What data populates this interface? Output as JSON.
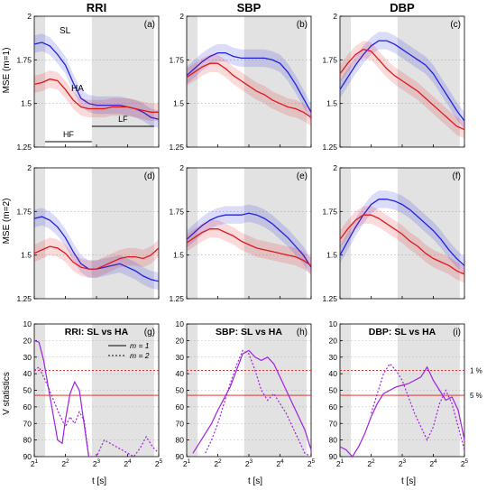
{
  "figure": {
    "ylabels": [
      "MSE (m=1)",
      "MSE (m=2)",
      "V statistics"
    ],
    "xlabel": "t [s]",
    "band_labels": {
      "hf": "HF",
      "lf": "LF"
    },
    "legend_top": {
      "sl": "SL",
      "ha": "HA"
    },
    "legend_bottom": {
      "m1": "m = 1",
      "m2": "m = 2"
    },
    "sig_labels": {
      "one": "1 %",
      "five": "5 %"
    }
  },
  "colors": {
    "sl": "#2020e0",
    "ha": "#e01818",
    "v": "#a020e0",
    "sig": "#e01818",
    "shade": "#e2e2e2"
  },
  "chart_data": [
    {
      "type": "line",
      "panel": "(a)",
      "title": "RRI",
      "xlabel": "",
      "ylabel": "MSE (m=1)",
      "xlim": [
        1,
        5
      ],
      "xscale": "log2",
      "ylim": [
        1.25,
        2
      ],
      "grid": true,
      "xticks": [
        "2^1",
        "2^2",
        "2^3",
        "2^4",
        "2^5"
      ],
      "yticks": [
        "1.25",
        "1.5",
        "1.75",
        "2"
      ],
      "annotations": [
        "SL",
        "HA",
        "HF",
        "LF"
      ],
      "series": [
        {
          "name": "SL",
          "x": [
            1,
            1.25,
            1.5,
            1.75,
            2,
            2.25,
            2.5,
            2.75,
            3,
            3.25,
            3.5,
            3.75,
            4,
            4.25,
            4.5,
            4.75,
            5
          ],
          "y": [
            1.84,
            1.85,
            1.83,
            1.78,
            1.72,
            1.62,
            1.53,
            1.5,
            1.49,
            1.49,
            1.49,
            1.49,
            1.48,
            1.47,
            1.45,
            1.42,
            1.41
          ]
        },
        {
          "name": "HA",
          "x": [
            1,
            1.25,
            1.5,
            1.75,
            2,
            2.25,
            2.5,
            2.75,
            3,
            3.25,
            3.5,
            3.75,
            4,
            4.25,
            4.5,
            4.75,
            5
          ],
          "y": [
            1.61,
            1.62,
            1.64,
            1.63,
            1.58,
            1.52,
            1.48,
            1.47,
            1.47,
            1.47,
            1.48,
            1.48,
            1.48,
            1.47,
            1.46,
            1.45,
            1.45
          ]
        }
      ]
    },
    {
      "type": "line",
      "panel": "(b)",
      "title": "SBP",
      "xlim": [
        1,
        5
      ],
      "xscale": "log2",
      "ylim": [
        1.25,
        2
      ],
      "grid": true,
      "xticks": [
        "2^1",
        "2^2",
        "2^3",
        "2^4",
        "2^5"
      ],
      "yticks": [
        "1.25",
        "1.5",
        "1.75",
        "2"
      ],
      "series": [
        {
          "name": "SL",
          "x": [
            1,
            1.25,
            1.5,
            1.75,
            2,
            2.25,
            2.5,
            2.75,
            3,
            3.25,
            3.5,
            3.75,
            4,
            4.25,
            4.5,
            4.75,
            5
          ],
          "y": [
            1.66,
            1.7,
            1.74,
            1.77,
            1.79,
            1.79,
            1.77,
            1.76,
            1.76,
            1.76,
            1.76,
            1.75,
            1.73,
            1.68,
            1.61,
            1.53,
            1.45
          ]
        },
        {
          "name": "HA",
          "x": [
            1,
            1.25,
            1.5,
            1.75,
            2,
            2.25,
            2.5,
            2.75,
            3,
            3.25,
            3.5,
            3.75,
            4,
            4.25,
            4.5,
            4.75,
            5
          ],
          "y": [
            1.65,
            1.68,
            1.71,
            1.73,
            1.73,
            1.7,
            1.66,
            1.63,
            1.6,
            1.57,
            1.55,
            1.52,
            1.5,
            1.48,
            1.47,
            1.45,
            1.42
          ]
        }
      ]
    },
    {
      "type": "line",
      "panel": "(c)",
      "title": "DBP",
      "xlim": [
        1,
        5
      ],
      "xscale": "log2",
      "ylim": [
        1.25,
        2
      ],
      "grid": true,
      "xticks": [
        "2^1",
        "2^2",
        "2^3",
        "2^4",
        "2^5"
      ],
      "yticks": [
        "1.25",
        "1.5",
        "1.75",
        "2"
      ],
      "series": [
        {
          "name": "SL",
          "x": [
            1,
            1.25,
            1.5,
            1.75,
            2,
            2.25,
            2.5,
            2.75,
            3,
            3.25,
            3.5,
            3.75,
            4,
            4.25,
            4.5,
            4.75,
            5
          ],
          "y": [
            1.58,
            1.65,
            1.72,
            1.78,
            1.83,
            1.86,
            1.86,
            1.84,
            1.81,
            1.78,
            1.75,
            1.72,
            1.67,
            1.6,
            1.53,
            1.46,
            1.4
          ]
        },
        {
          "name": "HA",
          "x": [
            1,
            1.25,
            1.5,
            1.75,
            2,
            2.25,
            2.5,
            2.75,
            3,
            3.25,
            3.5,
            3.75,
            4,
            4.25,
            4.5,
            4.75,
            5
          ],
          "y": [
            1.67,
            1.73,
            1.78,
            1.81,
            1.8,
            1.75,
            1.7,
            1.66,
            1.63,
            1.6,
            1.57,
            1.53,
            1.49,
            1.45,
            1.41,
            1.37,
            1.35
          ]
        }
      ]
    },
    {
      "type": "line",
      "panel": "(d)",
      "title": "",
      "ylabel": "MSE (m=2)",
      "xlim": [
        1,
        5
      ],
      "xscale": "log2",
      "ylim": [
        1.25,
        2
      ],
      "grid": true,
      "xticks": [
        "2^1",
        "2^2",
        "2^3",
        "2^4",
        "2^5"
      ],
      "yticks": [
        "1.25",
        "1.5",
        "1.75",
        "2"
      ],
      "series": [
        {
          "name": "SL",
          "x": [
            1,
            1.25,
            1.5,
            1.75,
            2,
            2.25,
            2.5,
            2.75,
            3,
            3.25,
            3.5,
            3.75,
            4,
            4.25,
            4.5,
            4.75,
            5
          ],
          "y": [
            1.71,
            1.72,
            1.7,
            1.66,
            1.6,
            1.52,
            1.45,
            1.42,
            1.42,
            1.43,
            1.44,
            1.45,
            1.43,
            1.41,
            1.38,
            1.36,
            1.35
          ]
        },
        {
          "name": "HA",
          "x": [
            1,
            1.25,
            1.5,
            1.75,
            2,
            2.25,
            2.5,
            2.75,
            3,
            3.25,
            3.5,
            3.75,
            4,
            4.25,
            4.5,
            4.75,
            5
          ],
          "y": [
            1.51,
            1.53,
            1.55,
            1.54,
            1.51,
            1.46,
            1.43,
            1.42,
            1.42,
            1.44,
            1.46,
            1.48,
            1.49,
            1.49,
            1.48,
            1.5,
            1.54
          ]
        }
      ]
    },
    {
      "type": "line",
      "panel": "(e)",
      "title": "",
      "xlim": [
        1,
        5
      ],
      "xscale": "log2",
      "ylim": [
        1.25,
        2
      ],
      "grid": true,
      "xticks": [
        "2^1",
        "2^2",
        "2^3",
        "2^4",
        "2^5"
      ],
      "yticks": [
        "1.25",
        "1.5",
        "1.75",
        "2"
      ],
      "series": [
        {
          "name": "SL",
          "x": [
            1,
            1.25,
            1.5,
            1.75,
            2,
            2.25,
            2.5,
            2.75,
            3,
            3.25,
            3.5,
            3.75,
            4,
            4.25,
            4.5,
            4.75,
            5
          ],
          "y": [
            1.59,
            1.63,
            1.67,
            1.7,
            1.72,
            1.73,
            1.73,
            1.73,
            1.74,
            1.73,
            1.71,
            1.68,
            1.64,
            1.6,
            1.55,
            1.5,
            1.43
          ]
        },
        {
          "name": "HA",
          "x": [
            1,
            1.25,
            1.5,
            1.75,
            2,
            2.25,
            2.5,
            2.75,
            3,
            3.25,
            3.5,
            3.75,
            4,
            4.25,
            4.5,
            4.75,
            5
          ],
          "y": [
            1.57,
            1.6,
            1.63,
            1.65,
            1.65,
            1.63,
            1.61,
            1.58,
            1.56,
            1.54,
            1.53,
            1.52,
            1.51,
            1.5,
            1.49,
            1.47,
            1.44
          ]
        }
      ]
    },
    {
      "type": "line",
      "panel": "(f)",
      "title": "",
      "xlim": [
        1,
        5
      ],
      "xscale": "log2",
      "ylim": [
        1.25,
        2
      ],
      "grid": true,
      "xticks": [
        "2^1",
        "2^2",
        "2^3",
        "2^4",
        "2^5"
      ],
      "yticks": [
        "1.25",
        "1.5",
        "1.75",
        "2"
      ],
      "series": [
        {
          "name": "SL",
          "x": [
            1,
            1.25,
            1.5,
            1.75,
            2,
            2.25,
            2.5,
            2.75,
            3,
            3.25,
            3.5,
            3.75,
            4,
            4.25,
            4.5,
            4.75,
            5
          ],
          "y": [
            1.5,
            1.58,
            1.66,
            1.73,
            1.79,
            1.82,
            1.82,
            1.81,
            1.79,
            1.76,
            1.72,
            1.68,
            1.64,
            1.59,
            1.53,
            1.48,
            1.44
          ]
        },
        {
          "name": "HA",
          "x": [
            1,
            1.25,
            1.5,
            1.75,
            2,
            2.25,
            2.5,
            2.75,
            3,
            3.25,
            3.5,
            3.75,
            4,
            4.25,
            4.5,
            4.75,
            5
          ],
          "y": [
            1.59,
            1.65,
            1.7,
            1.73,
            1.73,
            1.71,
            1.68,
            1.65,
            1.62,
            1.58,
            1.55,
            1.51,
            1.48,
            1.46,
            1.44,
            1.41,
            1.39
          ]
        }
      ]
    },
    {
      "type": "line",
      "panel": "(g)",
      "title": "RRI: SL vs HA",
      "ylabel": "V statistics",
      "xlim": [
        1,
        5
      ],
      "xscale": "log2",
      "ylim": [
        90,
        10
      ],
      "grid": true,
      "xticks": [
        "2^1",
        "2^2",
        "2^3",
        "2^4",
        "2^5"
      ],
      "yticks": [
        "10",
        "20",
        "30",
        "40",
        "50",
        "60",
        "70",
        "80",
        "90"
      ],
      "series": [
        {
          "name": "m = 1",
          "x": [
            1,
            1.15,
            1.3,
            1.45,
            1.6,
            1.75,
            1.9,
            2.0,
            2.15,
            2.3,
            2.45,
            2.6,
            2.75
          ],
          "y": [
            20,
            21,
            32,
            48,
            64,
            80,
            82,
            68,
            52,
            45,
            50,
            70,
            90
          ]
        },
        {
          "name": "m = 2",
          "x": [
            1,
            1.15,
            1.3,
            1.45,
            1.6,
            1.75,
            1.9,
            2.0,
            2.15,
            2.3,
            2.45,
            2.6,
            2.75,
            3.0,
            3.25,
            4.2,
            4.4,
            4.6,
            4.8,
            5.0
          ],
          "y": [
            38,
            36,
            42,
            48,
            55,
            62,
            68,
            72,
            66,
            70,
            63,
            68,
            90,
            90,
            80,
            90,
            85,
            78,
            84,
            88
          ]
        }
      ],
      "reference_lines": [
        {
          "label": "1 %",
          "y": 38,
          "style": "dotted"
        },
        {
          "label": "5 %",
          "y": 53,
          "style": "solid"
        }
      ]
    },
    {
      "type": "line",
      "panel": "(h)",
      "title": "SBP: SL vs HA",
      "xlim": [
        1,
        5
      ],
      "xscale": "log2",
      "ylim": [
        90,
        10
      ],
      "grid": true,
      "xticks": [
        "2^1",
        "2^2",
        "2^3",
        "2^4",
        "2^5"
      ],
      "yticks": [
        "10",
        "20",
        "30",
        "40",
        "50",
        "60",
        "70",
        "80",
        "90"
      ],
      "series": [
        {
          "name": "m = 1",
          "x": [
            1.2,
            1.4,
            1.6,
            1.8,
            2.0,
            2.2,
            2.4,
            2.6,
            2.8,
            3.0,
            3.2,
            3.4,
            3.6,
            3.8,
            4.0,
            4.2,
            4.4,
            4.6,
            4.8,
            5.0
          ],
          "y": [
            88,
            82,
            76,
            70,
            62,
            55,
            48,
            38,
            28,
            26,
            30,
            32,
            30,
            34,
            42,
            50,
            58,
            66,
            74,
            86
          ]
        },
        {
          "name": "m = 2",
          "x": [
            1.6,
            1.8,
            2.0,
            2.2,
            2.4,
            2.6,
            2.8,
            3.0,
            3.2,
            3.4,
            3.6,
            3.8,
            4.0,
            4.2,
            4.4,
            4.6,
            4.8,
            5.0
          ],
          "y": [
            88,
            80,
            70,
            58,
            46,
            35,
            26,
            28,
            38,
            50,
            56,
            52,
            58,
            64,
            72,
            80,
            88,
            90
          ]
        }
      ],
      "reference_lines": [
        {
          "label": "1 %",
          "y": 38,
          "style": "dotted"
        },
        {
          "label": "5 %",
          "y": 53,
          "style": "solid"
        }
      ]
    },
    {
      "type": "line",
      "panel": "(i)",
      "title": "DBP: SL vs HA",
      "xlim": [
        1,
        5
      ],
      "xscale": "log2",
      "ylim": [
        90,
        10
      ],
      "grid": true,
      "xticks": [
        "2^1",
        "2^2",
        "2^3",
        "2^4",
        "2^5"
      ],
      "yticks": [
        "10",
        "20",
        "30",
        "40",
        "50",
        "60",
        "70",
        "80",
        "90"
      ],
      "annotations": [
        "1 %",
        "5 %"
      ],
      "series": [
        {
          "name": "m = 1",
          "x": [
            1.0,
            1.2,
            1.4,
            1.6,
            1.8,
            2.0,
            2.2,
            2.4,
            2.6,
            2.8,
            3.0,
            3.2,
            3.4,
            3.6,
            3.8,
            4.0,
            4.2,
            4.4,
            4.6,
            4.8,
            5.0
          ],
          "y": [
            84,
            86,
            90,
            84,
            76,
            66,
            58,
            52,
            50,
            48,
            47,
            46,
            44,
            42,
            36,
            44,
            50,
            56,
            54,
            62,
            80
          ]
        },
        {
          "name": "m = 2",
          "x": [
            2.0,
            2.2,
            2.4,
            2.6,
            2.8,
            3.0,
            3.2,
            3.4,
            3.6,
            3.8,
            4.0,
            4.2,
            4.4,
            4.6,
            4.8,
            5.0
          ],
          "y": [
            64,
            52,
            40,
            34,
            38,
            44,
            54,
            64,
            72,
            80,
            72,
            58,
            50,
            58,
            72,
            86
          ]
        }
      ],
      "reference_lines": [
        {
          "label": "1 %",
          "y": 38,
          "style": "dotted"
        },
        {
          "label": "5 %",
          "y": 53,
          "style": "solid"
        }
      ]
    }
  ]
}
